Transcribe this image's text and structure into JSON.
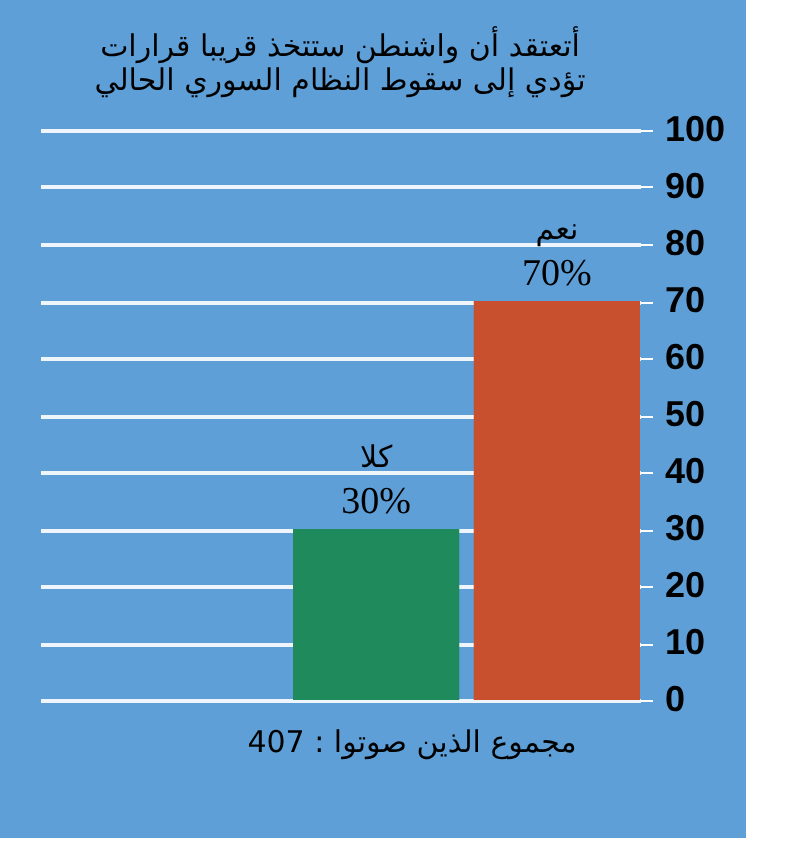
{
  "chart_data": {
    "type": "bar",
    "title": "أتعتقد أن واشنطن ستتخذ قريبا قرارات\nتؤدي إلى سقوط النظام السوري الحالي",
    "categories": [
      "كلا",
      "نعم"
    ],
    "values": [
      30,
      70
    ],
    "colors": [
      "#1f8a5c",
      "#c9502f"
    ],
    "value_labels": [
      "30%",
      "70%"
    ],
    "ylim": [
      0,
      100
    ],
    "yticks": [
      0,
      10,
      20,
      30,
      40,
      50,
      60,
      70,
      80,
      90,
      100
    ],
    "grid": "y",
    "tick_labels": "y",
    "annotations": [
      "مجموع الذين صوتوا : 407"
    ]
  }
}
